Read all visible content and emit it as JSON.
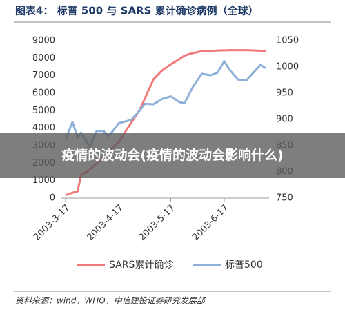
{
  "chart_data": {
    "type": "line",
    "title": "图表4：  标普 500 与 SARS 累计确诊病例（全球）",
    "source": "资料来源：wind，WHO，中信建投证券研究发展部",
    "x": [
      "2003-3-17",
      "2003-3-21",
      "2003-3-24",
      "2003-3-26",
      "2003-3-31",
      "2003-4-4",
      "2003-4-8",
      "2003-4-11",
      "2003-4-17",
      "2003-4-24",
      "2003-4-29",
      "2003-5-2",
      "2003-5-7",
      "2003-5-12",
      "2003-5-17",
      "2003-5-22",
      "2003-5-25",
      "2003-5-30",
      "2003-6-4",
      "2003-6-9",
      "2003-6-13",
      "2003-6-17",
      "2003-6-20",
      "2003-6-25",
      "2003-6-30",
      "2003-7-3",
      "2003-7-8",
      "2003-7-11"
    ],
    "xlim": [
      "2003-3-17",
      "2003-7-11"
    ],
    "xticks": [
      "2003-3-17",
      "2003-4-17",
      "2003-5-17",
      "2003-6-17"
    ],
    "ylim": [
      0,
      9000
    ],
    "yticks": [
      0,
      1000,
      2000,
      3000,
      4000,
      5000,
      6000,
      7000,
      8000,
      9000
    ],
    "y2lim": [
      750,
      1050
    ],
    "y2ticks": [
      750,
      800,
      850,
      900,
      950,
      1000,
      1050
    ],
    "series": [
      {
        "name": "SARS累计确诊",
        "color": "#f07a7a",
        "values": [
          167,
          306,
          386,
          1320,
          1620,
          2000,
          2330,
          2670,
          3240,
          4300,
          5050,
          5700,
          6800,
          7300,
          7650,
          7950,
          8150,
          8300,
          8400,
          8420,
          8440,
          8450,
          8460,
          8460,
          8460,
          8450,
          8430,
          8430
        ]
      },
      {
        "name": "标普500",
        "color": "#8db0d9",
        "axis": "y2",
        "values": [
          862,
          895,
          865,
          875,
          848,
          878,
          878,
          868,
          893,
          899,
          917,
          930,
          929,
          939,
          944,
          933,
          931,
          963,
          987,
          984,
          989,
          1011,
          995,
          976,
          975,
          986,
          1004,
          998
        ]
      }
    ]
  },
  "banner": "疫情的波动会(疫情的波动会影响什么)"
}
